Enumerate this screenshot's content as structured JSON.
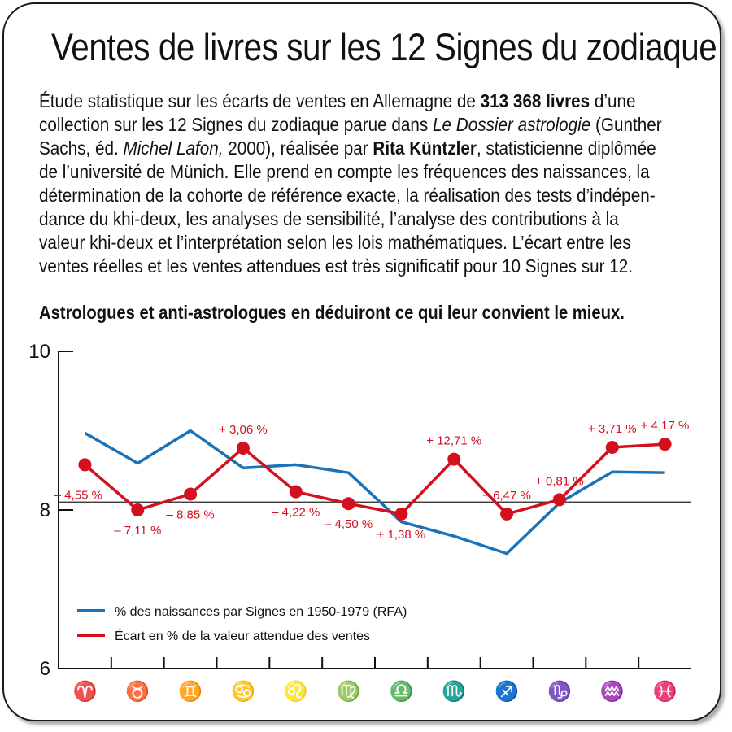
{
  "title": "Ventes de livres sur les 12 Signes du zodiaque",
  "description": {
    "p1": "Étude statistique sur les écarts de ventes en Allemagne de ",
    "b1": "313 368 livres",
    "p2": " d’une collection sur les 12 Signes du zodiaque parue dans ",
    "i1": "Le Dossier astrologie",
    "p3": " (Gunther Sachs, éd. ",
    "i2": "Michel Lafon,",
    "p4": " 2000), réalisée par ",
    "b2": "Rita Küntzler",
    "p5": ", statisticienne diplômée de l’université de Münich. Elle prend en compte les fréquences des naissances, la détermination de la cohorte de référence exacte, la réalisation des tests d’indépen-dance du khi-deux, les analyses de sensibilité, l’analyse des contributions à la valeur khi-deux et l’interprétation selon les lois mathématiques. L’écart entre les ventes réelles et les ventes attendues est très significatif pour 10 Signes sur 12."
  },
  "conclusion": "Astrologues et anti-astrologues en déduiront ce qui leur convient le mieux.",
  "colors": {
    "blue": "#1a72b8",
    "red": "#d4101f"
  },
  "chart_data": {
    "type": "line",
    "categories": [
      "♈",
      "♉",
      "♊",
      "♋",
      "♌",
      "♍",
      "♎",
      "♏",
      "♐",
      "♑",
      "♒",
      "♓"
    ],
    "ylim": [
      6,
      10
    ],
    "yticks": [
      6,
      8,
      10
    ],
    "reference_y": 8.1,
    "series": [
      {
        "name": "% des naissances par Signes en 1950-1979 (RFA)",
        "color": "#1a72b8",
        "values": [
          8.97,
          8.59,
          9.0,
          8.53,
          8.57,
          8.47,
          7.85,
          7.67,
          7.45,
          8.09,
          8.48,
          8.47
        ]
      },
      {
        "name": "Écart en % de la valeur attendue des ventes",
        "color": "#d4101f",
        "values": [
          8.57,
          8.0,
          8.2,
          8.78,
          8.23,
          8.08,
          7.95,
          8.64,
          7.95,
          8.13,
          8.79,
          8.83
        ],
        "labels": [
          "– 4,55 %",
          "– 7,11 %",
          "– 8,85 %",
          "+ 3,06 %",
          "– 4,22 %",
          "– 4,50 %",
          "+ 1,38 %",
          "+ 12,71 %",
          "+ 6,47 %",
          "+ 0,81 %",
          "+ 3,71 %",
          "+ 4,17 %"
        ]
      }
    ],
    "grid": false,
    "legend": "bottom-left"
  }
}
